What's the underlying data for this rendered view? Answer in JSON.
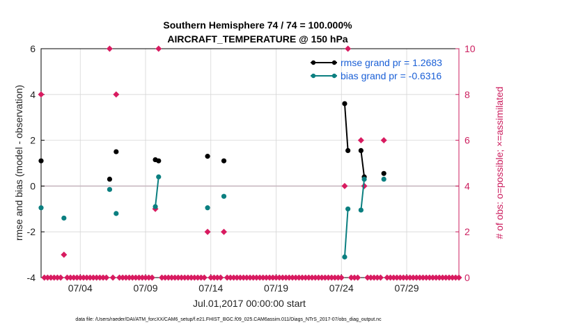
{
  "chart_data": {
    "type": "scatter",
    "title_line1": "Southern Hemisphere 74 / 74 = 100.000%",
    "title_line2": "AIRCRAFT_TEMPERATURE @ 150 hPa",
    "xlabel": "Jul.01,2017 00:00:00 start",
    "ylabel": "rmse and bias (model - observation)",
    "ylabel_right": "# of obs: o=possible; ×=assimilated",
    "xlim": [
      0,
      32
    ],
    "ylim": [
      -4,
      6
    ],
    "ylim_right": [
      0,
      10
    ],
    "x_ticks": [
      3,
      8,
      13,
      18,
      23,
      28
    ],
    "x_tick_labels": [
      "07/04",
      "07/09",
      "07/14",
      "07/19",
      "07/24",
      "07/29"
    ],
    "y_ticks": [
      -4,
      -2,
      0,
      2,
      4,
      6
    ],
    "y_tick_labels": [
      "-4",
      "-2",
      "0",
      "2",
      "4",
      "6"
    ],
    "y_ticks_right": [
      0,
      2,
      4,
      6,
      8,
      10
    ],
    "y_tick_labels_right": [
      "0",
      "2",
      "4",
      "6",
      "8",
      "10"
    ],
    "zero_line": 0,
    "series": [
      {
        "name": "rmse grand pr = 1.2683",
        "color": "#000000",
        "segments": [
          [
            [
              0,
              1.1
            ]
          ],
          [
            [
              5.25,
              0.3
            ]
          ],
          [
            [
              5.75,
              1.5
            ]
          ],
          [
            [
              8.75,
              1.15
            ],
            [
              9.0,
              1.1
            ]
          ],
          [
            [
              12.75,
              1.3
            ]
          ],
          [
            [
              14.0,
              1.1
            ]
          ],
          [
            [
              23.25,
              3.6
            ],
            [
              23.5,
              1.55
            ]
          ],
          [
            [
              24.5,
              1.55
            ],
            [
              24.75,
              0.4
            ]
          ],
          [
            [
              26.25,
              0.55
            ]
          ]
        ]
      },
      {
        "name": "bias grand pr = -0.6316",
        "color": "#0b7f80",
        "segments": [
          [
            [
              0,
              -0.95
            ]
          ],
          [
            [
              1.75,
              -1.4
            ]
          ],
          [
            [
              5.25,
              -0.15
            ]
          ],
          [
            [
              5.75,
              -1.2
            ]
          ],
          [
            [
              8.75,
              -0.9
            ],
            [
              9.0,
              0.4
            ]
          ],
          [
            [
              12.75,
              -0.95
            ]
          ],
          [
            [
              14.0,
              -0.45
            ]
          ],
          [
            [
              23.25,
              -3.1
            ],
            [
              23.5,
              -1.0
            ]
          ],
          [
            [
              24.5,
              -1.05
            ],
            [
              24.75,
              0.3
            ]
          ],
          [
            [
              26.25,
              0.3
            ]
          ]
        ]
      }
    ],
    "obs_counts": {
      "name": "# of obs",
      "color": "#d81b60",
      "points": [
        [
          0,
          8
        ],
        [
          1.75,
          1
        ],
        [
          5.25,
          10
        ],
        [
          5.75,
          8
        ],
        [
          8.75,
          3
        ],
        [
          9.0,
          10
        ],
        [
          12.75,
          2
        ],
        [
          14.0,
          2
        ],
        [
          23.25,
          4
        ],
        [
          23.5,
          10
        ],
        [
          24.5,
          6
        ],
        [
          24.75,
          4
        ],
        [
          26.25,
          6
        ]
      ],
      "zero_count_step": 0.25
    },
    "footnote": "data file: /Users/raeder/DAI/ATM_forcXX/CAM6_setup/f.e21.FHIST_BGC.f09_025.CAM6assim.011/Diags_NTrS_2017-07/obs_diag_output.nc"
  }
}
